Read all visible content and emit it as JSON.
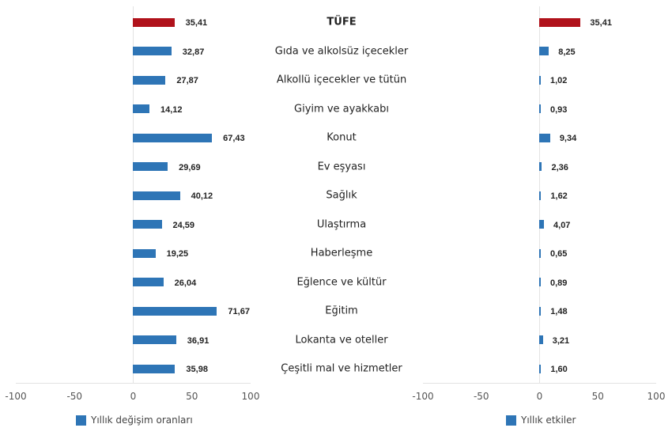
{
  "chart_data": [
    {
      "type": "bar",
      "orientation": "horizontal",
      "title": "",
      "categories": [
        "TÜFE",
        "Gıda ve alkolsüz içecekler",
        "Alkollü içecekler ve tütün",
        "Giyim ve ayakkabı",
        "Konut",
        "Ev eşyası",
        "Sağlık",
        "Ulaştırma",
        "Haberleşme",
        "Eğlence ve kültür",
        "Eğitim",
        "Lokanta ve oteller",
        "Çeşitli mal ve hizmetler"
      ],
      "series": [
        {
          "name": "Yıllık değişim oranları",
          "values": [
            35.41,
            32.87,
            27.87,
            14.12,
            67.43,
            29.69,
            40.12,
            24.59,
            19.25,
            26.04,
            71.67,
            36.91,
            35.98
          ]
        }
      ],
      "value_labels": [
        "35,41",
        "32,87",
        "27,87",
        "14,12",
        "67,43",
        "29,69",
        "40,12",
        "24,59",
        "19,25",
        "26,04",
        "71,67",
        "36,91",
        "35,98"
      ],
      "xlim": [
        -100,
        100
      ],
      "xticks": [
        "-100",
        "-50",
        "0",
        "50",
        "100"
      ],
      "grid": false,
      "legend_position": "bottom",
      "highlight": {
        "index": 0,
        "color": "#b0121b"
      },
      "bar_color": "#2e75b6"
    },
    {
      "type": "bar",
      "orientation": "horizontal",
      "title": "",
      "categories": [
        "TÜFE",
        "Gıda ve alkolsüz içecekler",
        "Alkollü içecekler ve tütün",
        "Giyim ve ayakkabı",
        "Konut",
        "Ev eşyası",
        "Sağlık",
        "Ulaştırma",
        "Haberleşme",
        "Eğlence ve kültür",
        "Eğitim",
        "Lokanta ve oteller",
        "Çeşitli mal ve hizmetler"
      ],
      "series": [
        {
          "name": "Yıllık etkiler",
          "values": [
            35.41,
            8.25,
            1.02,
            0.93,
            9.34,
            2.36,
            1.62,
            4.07,
            0.65,
            0.89,
            1.48,
            3.21,
            1.6
          ]
        }
      ],
      "value_labels": [
        "35,41",
        "8,25",
        "1,02",
        "0,93",
        "9,34",
        "2,36",
        "1,62",
        "4,07",
        "0,65",
        "0,89",
        "1,48",
        "3,21",
        "1,60"
      ],
      "xlim": [
        -100,
        100
      ],
      "xticks": [
        "-100",
        "-50",
        "0",
        "50",
        "100"
      ],
      "grid": false,
      "legend_position": "bottom",
      "highlight": {
        "index": 0,
        "color": "#b0121b"
      },
      "bar_color": "#2e75b6"
    }
  ],
  "categories_label_bold_index": 0,
  "left": {
    "legend": "Yıllık değişim oranları"
  },
  "right": {
    "legend": "Yıllık etkiler"
  }
}
